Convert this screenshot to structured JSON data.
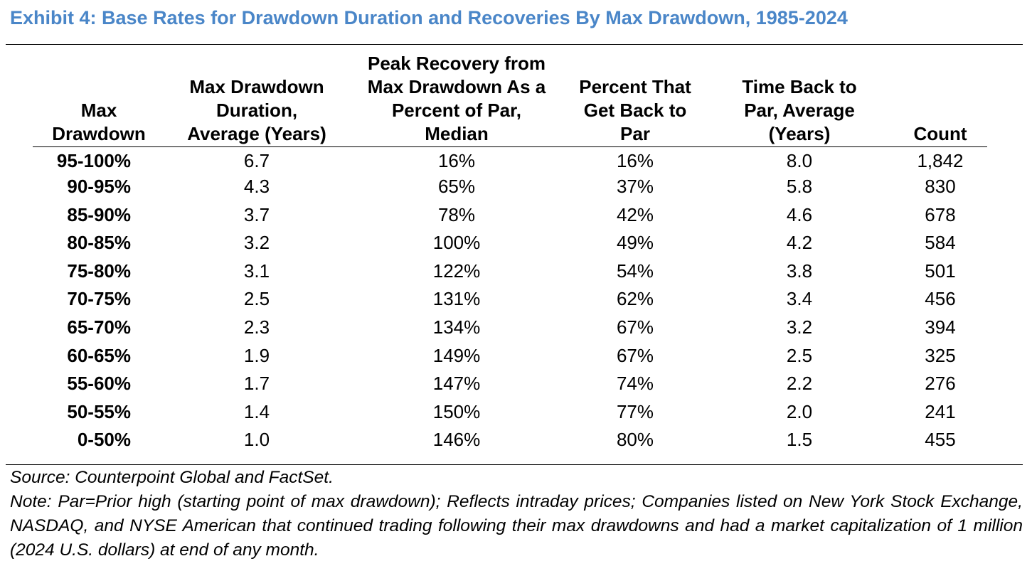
{
  "title": "Exhibit 4: Base Rates for Drawdown Duration and Recoveries By Max Drawdown, 1985-2024",
  "colors": {
    "title": "#4A86C8",
    "text": "#000000",
    "rules": "#000000"
  },
  "table": {
    "headers": [
      [
        "Max",
        "Drawdown"
      ],
      [
        "Max Drawdown",
        "Duration,",
        "Average (Years)"
      ],
      [
        "Peak Recovery from",
        "Max Drawdown As a",
        "Percent of Par,",
        "Median"
      ],
      [
        "Percent That",
        "Get Back to",
        "Par"
      ],
      [
        "Time Back to",
        "Par, Average",
        "(Years)"
      ],
      [
        "Count"
      ]
    ],
    "rows": [
      [
        "95-100%",
        "6.7",
        "16%",
        "16%",
        "8.0",
        "1,842"
      ],
      [
        "90-95%",
        "4.3",
        "65%",
        "37%",
        "5.8",
        "830"
      ],
      [
        "85-90%",
        "3.7",
        "78%",
        "42%",
        "4.6",
        "678"
      ],
      [
        "80-85%",
        "3.2",
        "100%",
        "49%",
        "4.2",
        "584"
      ],
      [
        "75-80%",
        "3.1",
        "122%",
        "54%",
        "3.8",
        "501"
      ],
      [
        "70-75%",
        "2.5",
        "131%",
        "62%",
        "3.4",
        "456"
      ],
      [
        "65-70%",
        "2.3",
        "134%",
        "67%",
        "3.2",
        "394"
      ],
      [
        "60-65%",
        "1.9",
        "149%",
        "67%",
        "2.5",
        "325"
      ],
      [
        "55-60%",
        "1.7",
        "147%",
        "74%",
        "2.2",
        "276"
      ],
      [
        "50-55%",
        "1.4",
        "150%",
        "77%",
        "2.0",
        "241"
      ],
      [
        "0-50%",
        "1.0",
        "146%",
        "80%",
        "1.5",
        "455"
      ]
    ]
  },
  "footer": {
    "source": "Source: Counterpoint Global and FactSet.",
    "note": "Note: Par=Prior high (starting point of max drawdown); Reflects intraday prices; Companies listed on New York Stock Exchange, NASDAQ, and NYSE American that continued trading following their max drawdowns and had a market capitalization of 1 million (2024 U.S. dollars) at end of any month."
  }
}
